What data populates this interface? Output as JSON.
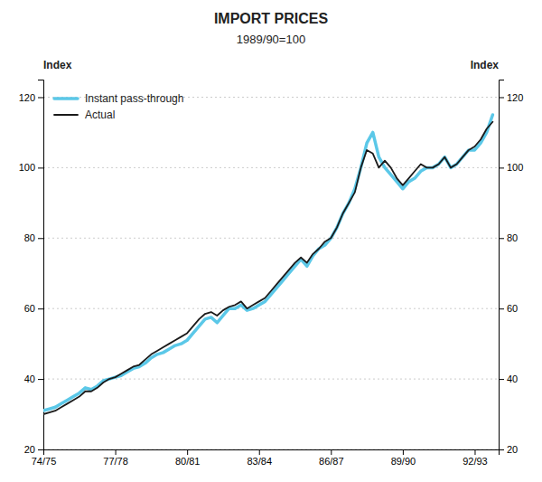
{
  "chart_data": {
    "type": "line",
    "title": "IMPORT PRICES",
    "subtitle": "1989/90=100",
    "y_label": "Index",
    "y2_label": "Index",
    "x": [
      0,
      1,
      2,
      3,
      4,
      5,
      6,
      7,
      8,
      9,
      10,
      11,
      12,
      13,
      14,
      15,
      16,
      17,
      18,
      19,
      20,
      21,
      22,
      23,
      24,
      25,
      26,
      27,
      28,
      29,
      30,
      31,
      32,
      33,
      34,
      35,
      36,
      37,
      38,
      39,
      40,
      41,
      42,
      43,
      44,
      45,
      46,
      47,
      48,
      49,
      50,
      51,
      52,
      53,
      54,
      55,
      56,
      57,
      58,
      59,
      60,
      61,
      62,
      63,
      64,
      65,
      66,
      67,
      68,
      69,
      70,
      71,
      72,
      73,
      74,
      75
    ],
    "xlim": [
      0,
      76
    ],
    "xticks": [
      {
        "value": 0,
        "label": "74/75"
      },
      {
        "value": 12,
        "label": "77/78"
      },
      {
        "value": 24,
        "label": "80/81"
      },
      {
        "value": 36,
        "label": "83/84"
      },
      {
        "value": 48,
        "label": "86/87"
      },
      {
        "value": 60,
        "label": "89/90"
      },
      {
        "value": 72,
        "label": "92/93"
      }
    ],
    "ylim": [
      20,
      125
    ],
    "yticks": [
      20,
      40,
      60,
      80,
      100,
      120
    ],
    "y2lim": [
      20,
      125
    ],
    "y2ticks": [
      20,
      40,
      60,
      80,
      100,
      120
    ],
    "grid": true,
    "legend": "upper left",
    "series": [
      {
        "name": "Instant pass-through",
        "color": "#5bc8e8",
        "values": [
          31,
          31.5,
          32,
          33,
          34,
          35,
          36,
          37.5,
          37,
          38,
          39.5,
          40,
          40.5,
          41,
          42,
          43,
          43.5,
          44.5,
          46,
          47,
          47.5,
          48.5,
          49.5,
          50,
          51,
          53,
          55,
          57,
          57.5,
          56,
          58,
          60,
          60,
          61,
          59.5,
          60,
          61,
          62,
          64,
          66,
          68,
          70,
          72,
          74,
          72,
          75,
          77,
          78,
          80,
          83,
          87,
          90,
          94,
          100,
          107,
          110,
          103,
          100,
          98,
          96,
          94,
          96,
          97,
          99,
          100,
          100,
          101,
          103,
          100,
          101,
          103,
          105,
          105,
          107,
          110,
          115
        ]
      },
      {
        "name": "Actual",
        "color": "#1a1a1a",
        "values": [
          30,
          30.5,
          31,
          32,
          33,
          34,
          35,
          36.5,
          36.5,
          37.5,
          39,
          40,
          40.5,
          41.5,
          42.5,
          43.5,
          44,
          45.5,
          47,
          48,
          49,
          50,
          51,
          52,
          53,
          55,
          57,
          58.5,
          59,
          58,
          59.5,
          60.5,
          61,
          62,
          60,
          61,
          62,
          63,
          65,
          67,
          69,
          71,
          73,
          74.5,
          73,
          75.5,
          77,
          79,
          80,
          83,
          87,
          90,
          93,
          100,
          105,
          104,
          100,
          102,
          100,
          97,
          95,
          97,
          99,
          101,
          100,
          100,
          101,
          103,
          100,
          101,
          103,
          105,
          106,
          108,
          111,
          113
        ]
      }
    ]
  }
}
